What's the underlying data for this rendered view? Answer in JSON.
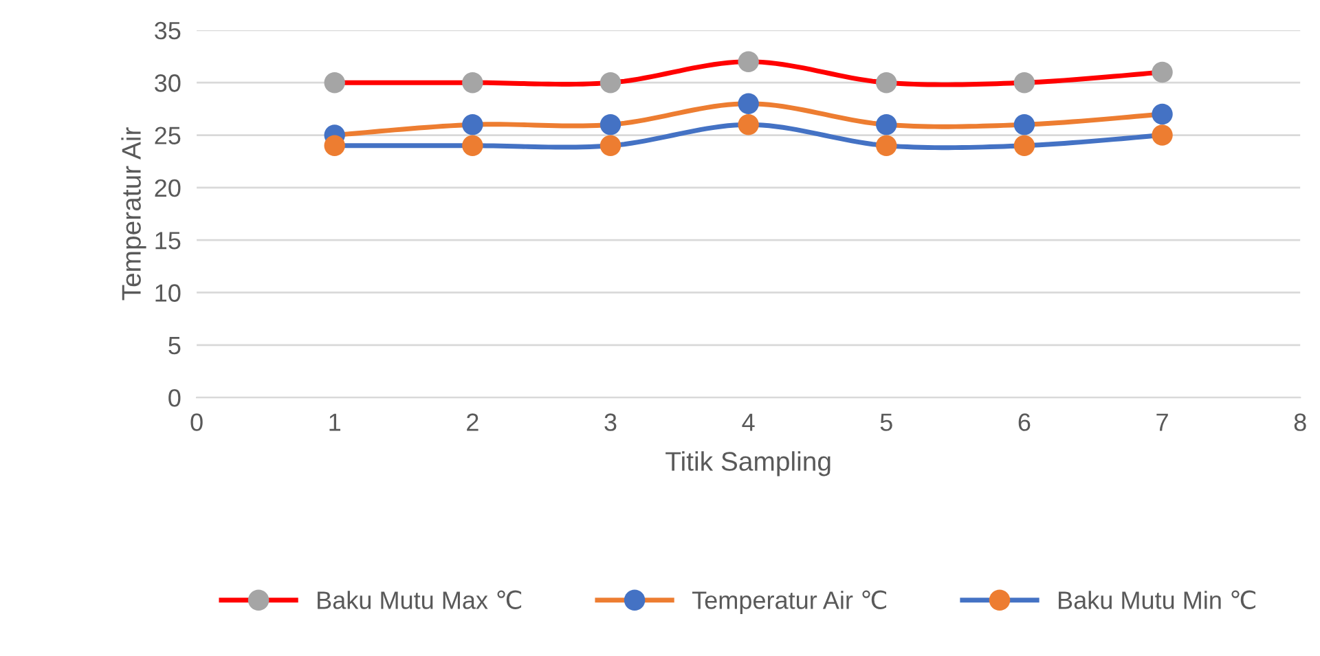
{
  "chart_data": {
    "type": "line",
    "xlabel": "Titik Sampling",
    "ylabel": "Temperatur Air",
    "x": [
      1,
      2,
      3,
      4,
      5,
      6,
      7
    ],
    "series": [
      {
        "name": "Baku Mutu Max ℃",
        "color": "#ff0000",
        "colors": [
          "#a5a5a5",
          "#a5a5a5",
          "#a5a5a5",
          "#a5a5a5",
          "#a5a5a5",
          "#a5a5a5",
          "#a5a5a5"
        ],
        "values": [
          30,
          30,
          30,
          32,
          30,
          30,
          31
        ]
      },
      {
        "name": "Temperatur Air ℃",
        "color": "#ed7d31",
        "colors": [
          "#4472c4",
          "#4472c4",
          "#4472c4",
          "#4472c4",
          "#4472c4",
          "#4472c4",
          "#4472c4"
        ],
        "values": [
          25,
          26,
          26,
          28,
          26,
          26,
          27
        ]
      },
      {
        "name": "Baku Mutu Min ℃",
        "color": "#4472c4",
        "colors": [
          "#ed7d31",
          "#ed7d31",
          "#ed7d31",
          "#ed7d31",
          "#ed7d31",
          "#ed7d31",
          "#ed7d31"
        ],
        "values": [
          24,
          24,
          24,
          26,
          24,
          24,
          25
        ]
      }
    ],
    "xlim": [
      0,
      8
    ],
    "xticks": [
      0,
      1,
      2,
      3,
      4,
      5,
      6,
      7,
      8
    ],
    "ylim": [
      0,
      35
    ],
    "yticks": [
      0,
      5,
      10,
      15,
      20,
      25,
      30,
      35
    ],
    "grid": "y",
    "legend": "bottom",
    "marker": "circle",
    "line_style": "solid"
  }
}
